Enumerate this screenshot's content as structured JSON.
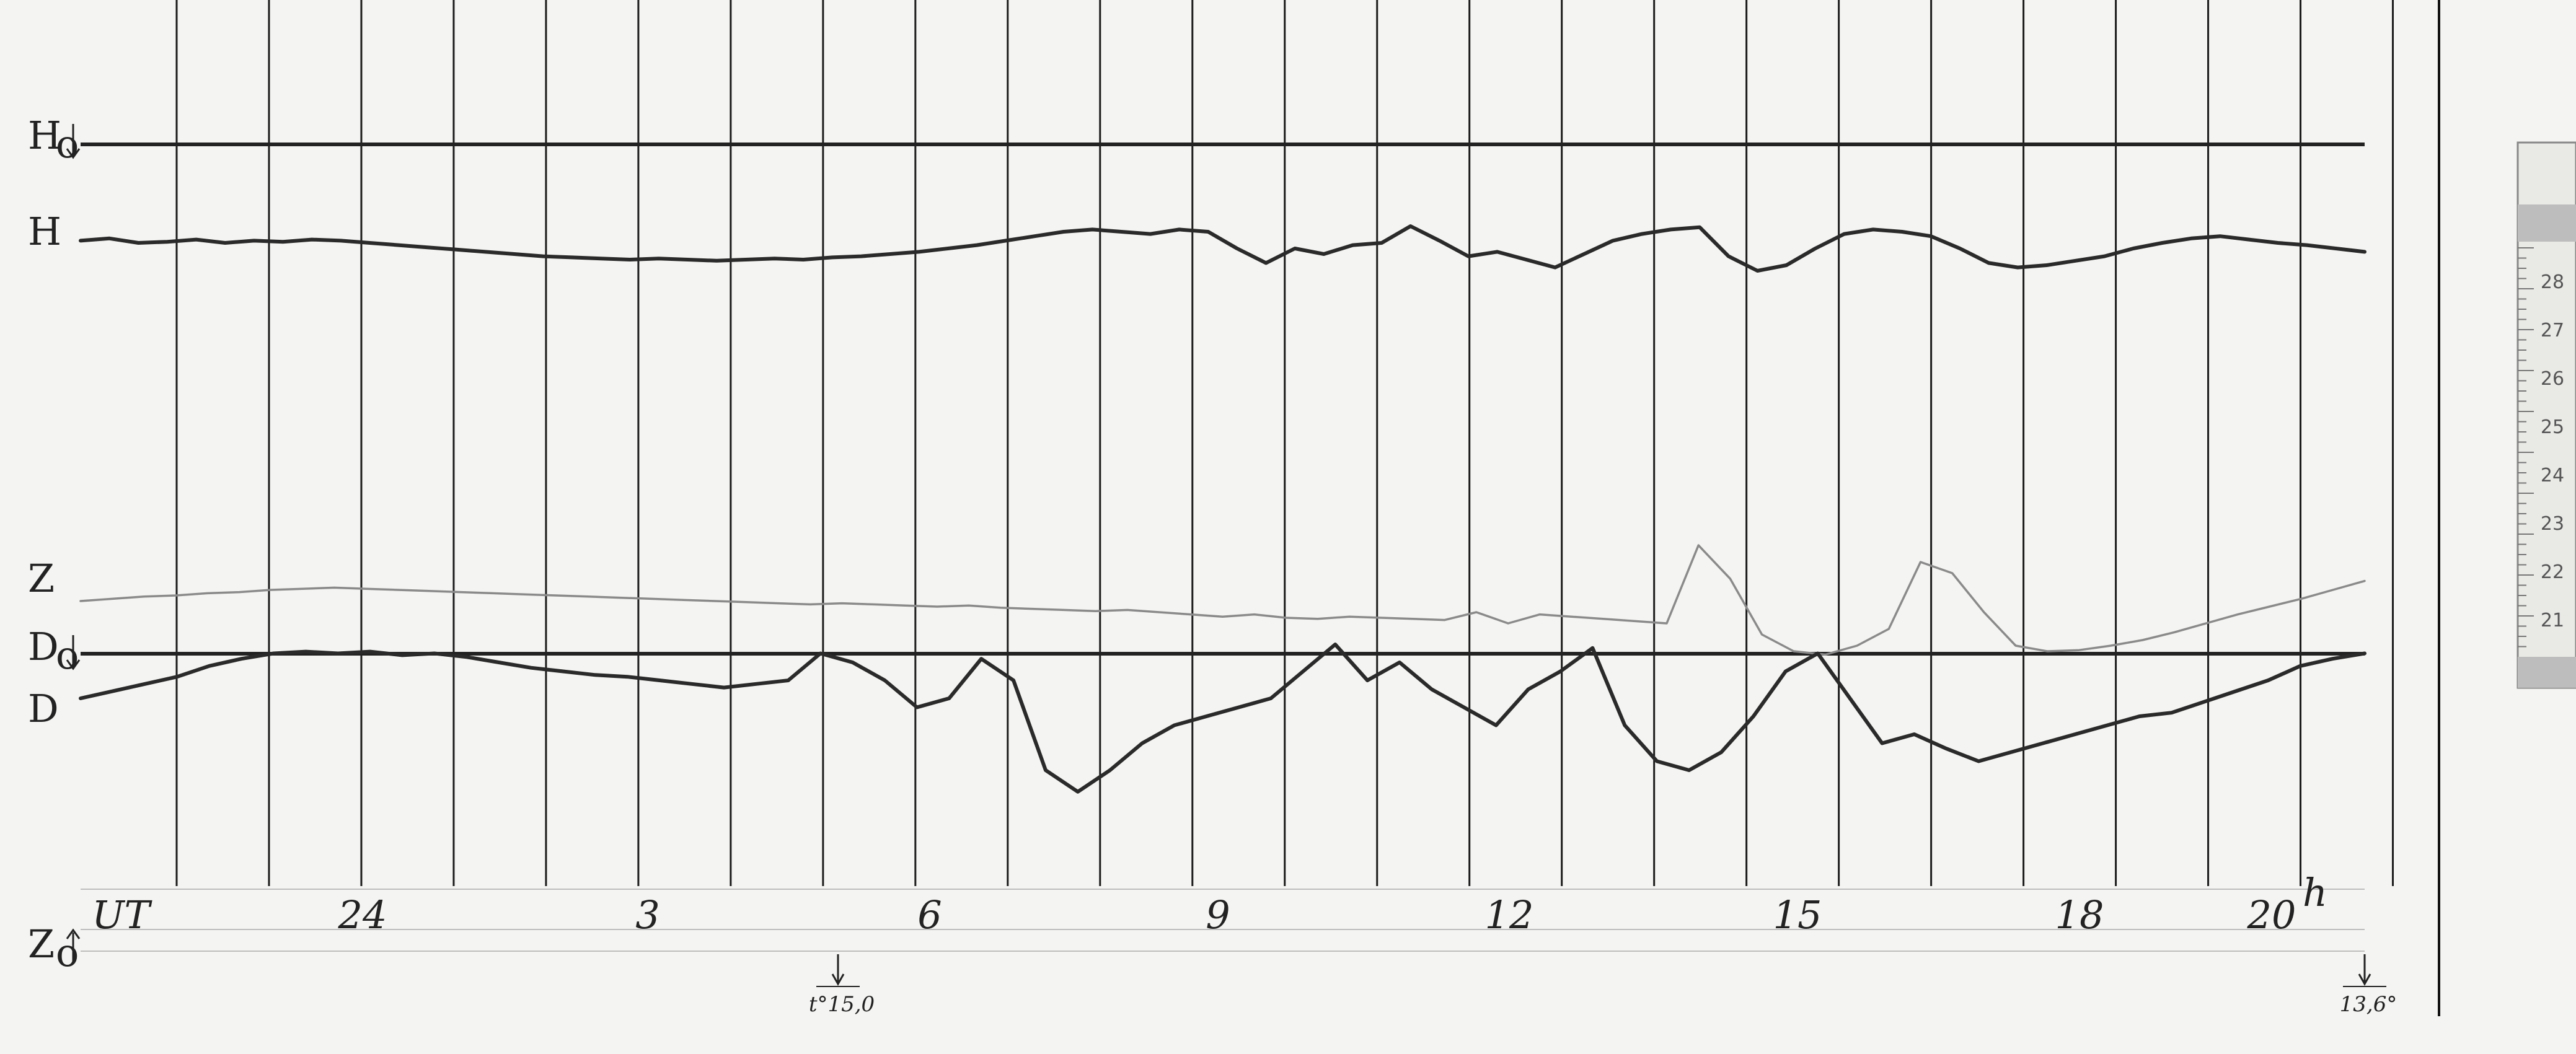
{
  "chart_data": {
    "type": "line",
    "time_unit_label": "UT",
    "hour_suffix": "h",
    "x_ticks": [
      {
        "label": "UT",
        "hour": null
      },
      {
        "label": "24",
        "hour": 24
      },
      {
        "label": "3",
        "hour": 3
      },
      {
        "label": "6",
        "hour": 6
      },
      {
        "label": "9",
        "hour": 9
      },
      {
        "label": "12",
        "hour": 12
      },
      {
        "label": "15",
        "hour": 15
      },
      {
        "label": "18",
        "hour": 18
      },
      {
        "label": "20",
        "hour": 20
      }
    ],
    "baselines": [
      {
        "name": "H",
        "label": "H",
        "subscript": "o"
      },
      {
        "name": "D",
        "label": "D",
        "subscript": "o"
      },
      {
        "name": "Z",
        "label": "Z",
        "subscript": "o"
      }
    ],
    "series": [
      {
        "name": "H",
        "label": "H",
        "color": "#2a2a2a",
        "trace": [
          0.62,
          0.64,
          0.6,
          0.61,
          0.63,
          0.6,
          0.62,
          0.61,
          0.63,
          0.62,
          0.6,
          0.58,
          0.56,
          0.54,
          0.52,
          0.5,
          0.48,
          0.47,
          0.46,
          0.45,
          0.46,
          0.45,
          0.44,
          0.45,
          0.46,
          0.45,
          0.47,
          0.48,
          0.5,
          0.52,
          0.55,
          0.58,
          0.62,
          0.66,
          0.7,
          0.72,
          0.7,
          0.68,
          0.72,
          0.7,
          0.55,
          0.42,
          0.55,
          0.5,
          0.58,
          0.6,
          0.75,
          0.62,
          0.48,
          0.52,
          0.45,
          0.38,
          0.5,
          0.62,
          0.68,
          0.72,
          0.74,
          0.48,
          0.35,
          0.4,
          0.55,
          0.68,
          0.72,
          0.7,
          0.66,
          0.55,
          0.42,
          0.38,
          0.4,
          0.44,
          0.48,
          0.55,
          0.6,
          0.64,
          0.66,
          0.63,
          0.6,
          0.58,
          0.55,
          0.52
        ]
      },
      {
        "name": "Z",
        "label": "Z",
        "color": "#8a8a8a",
        "trace": [
          0.5,
          0.52,
          0.54,
          0.55,
          0.57,
          0.58,
          0.6,
          0.61,
          0.62,
          0.61,
          0.6,
          0.59,
          0.58,
          0.57,
          0.56,
          0.55,
          0.54,
          0.53,
          0.52,
          0.51,
          0.5,
          0.49,
          0.48,
          0.47,
          0.48,
          0.47,
          0.46,
          0.45,
          0.46,
          0.44,
          0.43,
          0.42,
          0.41,
          0.42,
          0.4,
          0.38,
          0.36,
          0.38,
          0.35,
          0.34,
          0.36,
          0.35,
          0.34,
          0.33,
          0.4,
          0.3,
          0.38,
          0.36,
          0.34,
          0.32,
          0.3,
          1.0,
          0.7,
          0.2,
          0.05,
          0.02,
          0.1,
          0.25,
          0.85,
          0.75,
          0.4,
          0.1,
          0.05,
          0.06,
          0.1,
          0.15,
          0.22,
          0.3,
          0.38,
          0.45,
          0.52,
          0.6,
          0.68
        ]
      },
      {
        "name": "D",
        "label": "D",
        "color": "#2a2a2a",
        "trace": [
          0.7,
          0.74,
          0.78,
          0.82,
          0.88,
          0.92,
          0.95,
          0.96,
          0.95,
          0.96,
          0.94,
          0.95,
          0.93,
          0.9,
          0.87,
          0.85,
          0.83,
          0.82,
          0.8,
          0.78,
          0.76,
          0.78,
          0.8,
          0.95,
          0.9,
          0.8,
          0.65,
          0.7,
          0.92,
          0.8,
          0.3,
          0.18,
          0.3,
          0.45,
          0.55,
          0.6,
          0.65,
          0.7,
          0.85,
          1.0,
          0.8,
          0.9,
          0.75,
          0.65,
          0.55,
          0.75,
          0.85,
          0.98,
          0.55,
          0.35,
          0.3,
          0.4,
          0.6,
          0.85,
          0.95,
          0.7,
          0.45,
          0.5,
          0.42,
          0.35,
          0.4,
          0.45,
          0.5,
          0.55,
          0.6,
          0.62,
          0.68,
          0.74,
          0.8,
          0.88,
          0.92,
          0.95
        ]
      }
    ],
    "temperature_marks": [
      {
        "label": "t°15,0",
        "hour": 5
      },
      {
        "label": "13,6°",
        "hour": 20.4
      }
    ],
    "ruler": {
      "numbers": [
        "28",
        "27",
        "26",
        "25",
        "24",
        "23",
        "22",
        "21"
      ]
    },
    "grid": true,
    "legend": "none"
  }
}
